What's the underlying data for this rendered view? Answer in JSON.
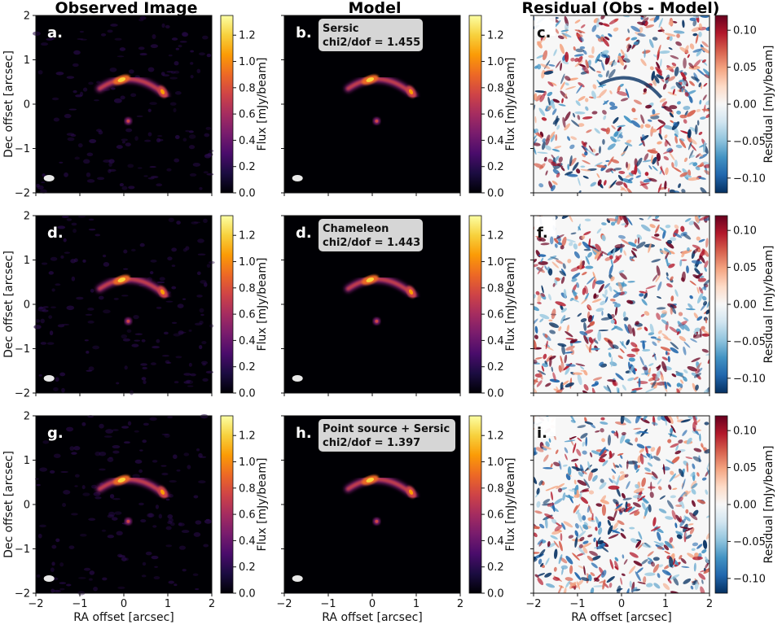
{
  "column_titles": [
    "Observed Image",
    "Model",
    "Residual (Obs - Model)"
  ],
  "panel_labels": [
    "a.",
    "b.",
    "c.",
    "d.",
    "d.",
    "f.",
    "g.",
    "h.",
    "i."
  ],
  "model_boxes": [
    {
      "line1": "Sersic",
      "line2": "chi2/dof = 1.455"
    },
    {
      "line1": "Chameleon",
      "line2": "chi2/dof = 1.443"
    },
    {
      "line1": "Point source + Sersic",
      "line2": "chi2/dof = 1.397"
    }
  ],
  "colors": {
    "inferno": [
      "#000004",
      "#1b0c41",
      "#4a0c6b",
      "#781c6d",
      "#a52c60",
      "#cf4446",
      "#ed6925",
      "#fb9b06",
      "#f7d13d",
      "#fcffa4"
    ],
    "rdbu": [
      "#053061",
      "#2166ac",
      "#4393c3",
      "#92c5de",
      "#d1e5f0",
      "#f7f7f7",
      "#fddbc7",
      "#f4a582",
      "#d6604d",
      "#b2182b",
      "#67001f"
    ]
  },
  "chart_data": [
    {
      "type": "heatmap",
      "panels": [
        "observed",
        "model",
        "residual"
      ],
      "xlabel": "RA offset [arcsec]",
      "ylabel": "Dec offset [arcsec]",
      "xlim": [
        -2,
        2
      ],
      "ylim": [
        -2,
        2
      ],
      "axis_ticks": [
        -2,
        -1,
        0,
        1,
        2
      ],
      "tick_labels": [
        "−2",
        "−1",
        "0",
        "1",
        "2"
      ]
    },
    {
      "type": "colorbar",
      "label": "Flux [mJy/beam]",
      "range": [
        0.0,
        1.35
      ],
      "ticks": [
        0.0,
        0.2,
        0.4,
        0.6,
        0.8,
        1.0,
        1.2
      ],
      "tick_labels": [
        "0.0",
        "0.2",
        "0.4",
        "0.6",
        "0.8",
        "1.0",
        "1.2"
      ]
    },
    {
      "type": "colorbar",
      "label": "Residual [mJy/beam]",
      "range": [
        -0.12,
        0.12
      ],
      "ticks": [
        -0.1,
        -0.05,
        0.0,
        0.05,
        0.1
      ],
      "tick_labels": [
        "−0.10",
        "−0.05",
        "0.00",
        "0.05",
        "0.10"
      ]
    }
  ]
}
